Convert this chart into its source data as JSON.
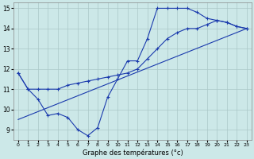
{
  "background_color": "#cce8e8",
  "grid_color": "#aac8c8",
  "line_color": "#1a3aad",
  "xlabel": "Graphe des températures (°c)",
  "ylim": [
    8.5,
    15.3
  ],
  "xlim": [
    -0.5,
    23.5
  ],
  "yticks": [
    9,
    10,
    11,
    12,
    13,
    14,
    15
  ],
  "xticks": [
    0,
    1,
    2,
    3,
    4,
    5,
    6,
    7,
    8,
    9,
    10,
    11,
    12,
    13,
    14,
    15,
    16,
    17,
    18,
    19,
    20,
    21,
    22,
    23
  ],
  "line1_x": [
    0,
    1,
    2,
    3,
    4,
    5,
    6,
    7,
    8,
    9,
    10,
    11,
    12,
    13,
    14,
    15,
    16,
    17,
    18,
    19,
    20,
    21,
    22,
    23
  ],
  "line1_y": [
    11.8,
    11.0,
    10.5,
    9.7,
    9.8,
    9.6,
    9.0,
    8.7,
    9.1,
    10.6,
    11.5,
    12.4,
    12.4,
    13.5,
    15.0,
    15.0,
    15.0,
    15.0,
    14.8,
    14.5,
    14.4,
    14.3,
    14.1,
    14.0
  ],
  "line2_x": [
    0,
    1,
    2,
    3,
    4,
    5,
    6,
    7,
    8,
    9,
    10,
    11,
    12,
    13,
    14,
    15,
    16,
    17,
    18,
    19,
    20,
    21,
    22,
    23
  ],
  "line2_y": [
    11.8,
    11.0,
    11.0,
    11.0,
    11.0,
    11.2,
    11.3,
    11.4,
    11.5,
    11.6,
    11.7,
    11.8,
    12.0,
    12.5,
    13.0,
    13.5,
    13.8,
    14.0,
    14.0,
    14.2,
    14.4,
    14.3,
    14.1,
    14.0
  ],
  "line3_x": [
    0,
    23
  ],
  "line3_y": [
    9.5,
    14.0
  ]
}
